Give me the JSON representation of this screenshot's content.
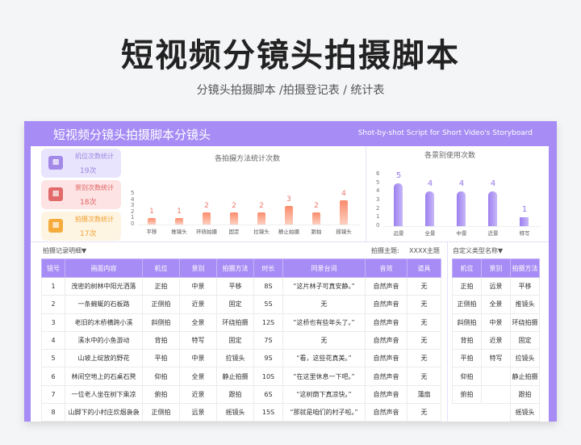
{
  "header": {
    "title": "短视频分镜头拍摄脚本",
    "subtitle": "分镜头拍摄脚本 /拍摄登记表 / 统计表"
  },
  "sheet": {
    "title": "短视频分镜头拍摄脚本分镜头",
    "english_title": "Shot-by-shot Script for Short Video's Storyboard",
    "accent_color": "#a68cf4"
  },
  "stats": [
    {
      "label": "机位次数统计",
      "value": "19次",
      "icon": "bar-chart-icon",
      "color": "#a48ae8"
    },
    {
      "label": "景别次数统计",
      "value": "18次",
      "icon": "bar-chart-icon",
      "color": "#e26a6a"
    },
    {
      "label": "拍摄次数统计",
      "value": "17次",
      "icon": "bar-chart-icon",
      "color": "#f6ac3c"
    }
  ],
  "chart_data": [
    {
      "type": "bar",
      "title": "各拍摄方法统计次数",
      "categories": [
        "平移",
        "推镜头",
        "环绕拍摄",
        "固定",
        "拉镜头",
        "静止拍摄",
        "跟拍",
        "摇镜头"
      ],
      "values": [
        1,
        1,
        2,
        2,
        2,
        3,
        2,
        4
      ],
      "yticks": [
        "0",
        "1",
        "2",
        "3",
        "4",
        "5"
      ],
      "ylim": [
        0,
        5
      ],
      "xlabel": "",
      "ylabel": "",
      "color": "#fb8c6c"
    },
    {
      "type": "bar",
      "title": "各景别使用次数",
      "categories": [
        "远景",
        "全景",
        "中景",
        "近景",
        "特写"
      ],
      "values": [
        5,
        4,
        4,
        4,
        1
      ],
      "yticks": [
        "0",
        "1",
        "2",
        "3",
        "4",
        "5",
        "6"
      ],
      "ylim": [
        0,
        6
      ],
      "xlabel": "",
      "ylabel": "",
      "color": "#9c80ef"
    }
  ],
  "records": {
    "caption": "拍摄记录明细▼",
    "theme_label": "拍摄主题:",
    "theme_value": "XXXX主题",
    "columns": [
      "镜号",
      "画面内容",
      "机位",
      "景别",
      "拍摄方法",
      "时长",
      "同景台词",
      "音效",
      "道具"
    ],
    "rows": [
      [
        "1",
        "茂密的树林中阳光洒落",
        "正拍",
        "中景",
        "平移",
        "8S",
        "“这片林子可真安静。”",
        "自然声音",
        "无"
      ],
      [
        "2",
        "一条蜿蜒的石板路",
        "正侧拍",
        "近景",
        "固定",
        "5S",
        "无",
        "自然声音",
        "无"
      ],
      [
        "3",
        "老旧的木桥横跨小溪",
        "斜侧拍",
        "全景",
        "环绕拍摄",
        "12S",
        "“这桥也有些年头了。”",
        "自然声音",
        "无"
      ],
      [
        "4",
        "溪水中的小鱼游动",
        "背拍",
        "特写",
        "固定",
        "7S",
        "无",
        "自然声音",
        "无"
      ],
      [
        "5",
        "山坡上绽放的野花",
        "平拍",
        "中景",
        "拉镜头",
        "9S",
        "“看，这些花真美。”",
        "自然声音",
        "无"
      ],
      [
        "6",
        "林间空地上的石桌石凳",
        "仰拍",
        "全景",
        "静止拍摄",
        "10S",
        "“在这里休息一下吧。”",
        "自然声音",
        "无"
      ],
      [
        "7",
        "一位老人坐在树下乘凉",
        "俯拍",
        "近景",
        "跟拍",
        "6S",
        "“这树荫下真凉快。”",
        "自然声音",
        "蒲扇"
      ],
      [
        "8",
        "山脚下的小村庄炊烟袅袅",
        "正侧拍",
        "远景",
        "摇镜头",
        "15S",
        "“那就是咱们的村子啦。”",
        "自然声音",
        "无"
      ]
    ]
  },
  "custom_types": {
    "caption": "自定义类型名称▼",
    "columns": [
      "机位",
      "景别",
      "拍摄方法"
    ],
    "rows": [
      [
        "正拍",
        "远景",
        "平移"
      ],
      [
        "正侧拍",
        "全景",
        "推镜头"
      ],
      [
        "斜侧拍",
        "中景",
        "环绕拍摄"
      ],
      [
        "背拍",
        "近景",
        "固定"
      ],
      [
        "平拍",
        "特写",
        "拉镜头"
      ],
      [
        "仰拍",
        "",
        "静止拍摄"
      ],
      [
        "俯拍",
        "",
        "跟拍"
      ],
      [
        "",
        "",
        "摇镜头"
      ]
    ]
  }
}
